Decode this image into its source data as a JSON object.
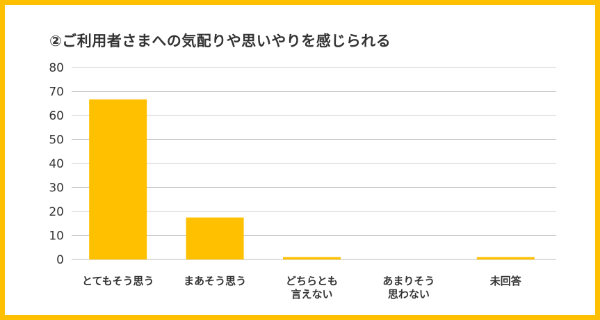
{
  "chart_data": {
    "type": "bar",
    "title": "②ご利用者さまへの気配りや思いやりを感じられる",
    "categories": [
      [
        "とてもそう思う"
      ],
      [
        "まあそう思う"
      ],
      [
        "どちらとも",
        "言えない"
      ],
      [
        "あまりそう",
        "思わない"
      ],
      [
        "未回答"
      ]
    ],
    "values": [
      66.7,
      17.5,
      1,
      0,
      1
    ],
    "ylim": [
      0,
      80
    ],
    "yticks": [
      0,
      10,
      20,
      30,
      40,
      50,
      60,
      70,
      80
    ],
    "grid": true,
    "bar_color": "#ffc000",
    "border_color": "#ffc000",
    "grid_color": "#cccccc"
  }
}
